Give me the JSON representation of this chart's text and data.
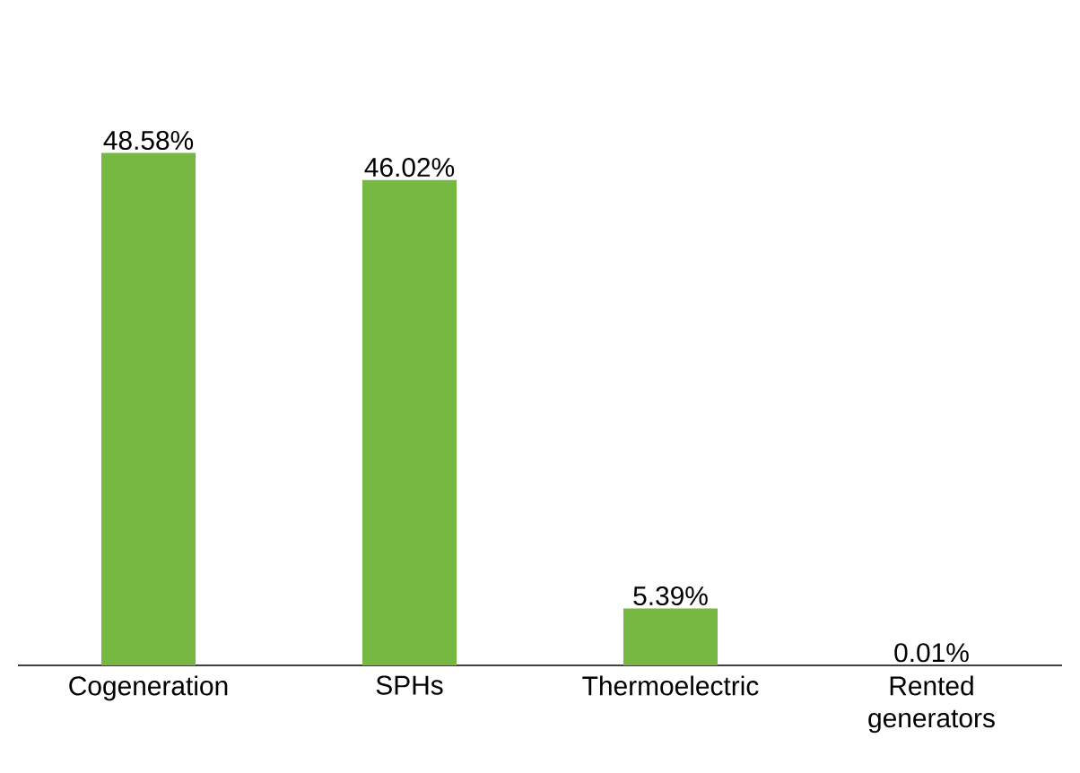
{
  "chart_data": {
    "type": "bar",
    "categories": [
      "Cogeneration",
      "SPHs",
      "Thermoelectric",
      "Rented generators"
    ],
    "values": [
      48.58,
      46.02,
      5.39,
      0.01
    ],
    "value_labels": [
      "48.58%",
      "46.02%",
      "5.39%",
      "0.01%"
    ],
    "color": "#77b843"
  }
}
